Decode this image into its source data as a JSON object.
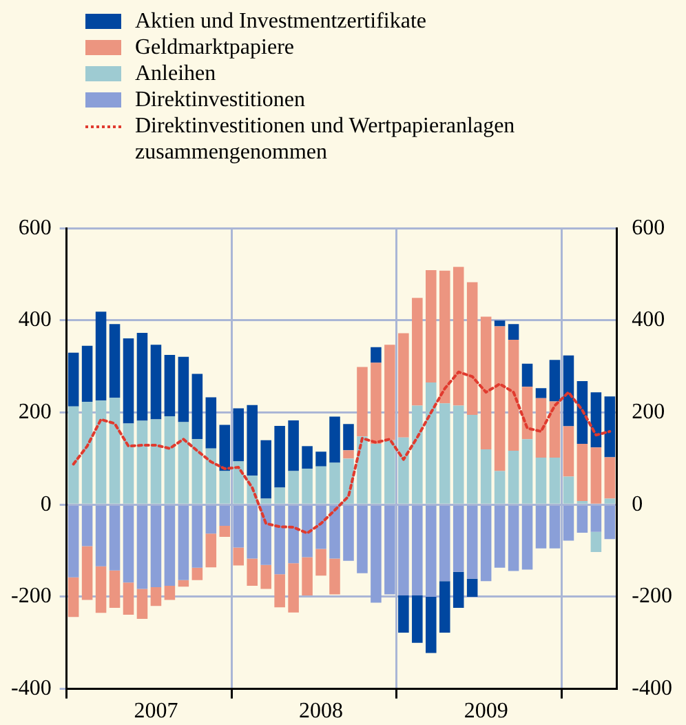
{
  "chart_data": {
    "type": "bar",
    "stacked": true,
    "categories": [
      null,
      null,
      null,
      null,
      null,
      null,
      "2007",
      null,
      null,
      null,
      null,
      null,
      null,
      null,
      null,
      null,
      null,
      null,
      "2008",
      null,
      null,
      null,
      null,
      null,
      null,
      null,
      null,
      null,
      null,
      null,
      "2009",
      null,
      null,
      null,
      null,
      null,
      null,
      null,
      null,
      null
    ],
    "series": [
      {
        "name": "Direktinvestitionen",
        "color": "#8a9fd8",
        "values": [
          -158,
          -90,
          -134,
          -143,
          -169,
          -183,
          -179,
          -176,
          -164,
          -137,
          -63,
          -46,
          -93,
          -117,
          -131,
          -151,
          -127,
          -114,
          -96,
          -117,
          -122,
          -149,
          -213,
          -195,
          -197,
          -197,
          -200,
          -166,
          -146,
          -161,
          -166,
          -137,
          -144,
          -141,
          -95,
          -95,
          -78,
          -61,
          -59,
          -75
        ]
      },
      {
        "name": "Anleihen",
        "color": "#9ecbd2",
        "values": [
          213,
          223,
          226,
          232,
          176,
          182,
          185,
          192,
          179,
          142,
          122,
          73,
          94,
          63,
          13,
          37,
          73,
          78,
          83,
          91,
          100,
          148,
          132,
          140,
          146,
          215,
          265,
          220,
          215,
          195,
          120,
          73,
          117,
          142,
          102,
          102,
          61,
          8,
          -44,
          13
        ]
      },
      {
        "name": "Geldmarktpapiere",
        "color": "#ec9580",
        "values": [
          -86,
          -117,
          -101,
          -81,
          -70,
          -65,
          -41,
          -31,
          -14,
          -27,
          -73,
          -24,
          -39,
          -59,
          -52,
          -72,
          -107,
          -83,
          -58,
          -78,
          18,
          151,
          176,
          207,
          226,
          234,
          244,
          288,
          301,
          288,
          288,
          314,
          241,
          114,
          129,
          122,
          109,
          124,
          124,
          90
        ]
      },
      {
        "name": "Aktien und Investmentzertifikate",
        "color": "#0047a0",
        "values": [
          117,
          122,
          193,
          160,
          185,
          191,
          162,
          133,
          142,
          142,
          111,
          100,
          115,
          153,
          127,
          134,
          110,
          49,
          32,
          100,
          57,
          0,
          34,
          0,
          -81,
          -103,
          -122,
          -112,
          -78,
          -39,
          0,
          13,
          34,
          50,
          22,
          90,
          154,
          136,
          120,
          132
        ]
      },
      {
        "name": "Direktinvestitionen und Wertpapieranlagen zusammengenommen",
        "type": "line",
        "line_style": "dotted",
        "marker": "none",
        "color": "#e03a2e",
        "values": [
          88,
          127,
          185,
          176,
          127,
          129,
          129,
          122,
          142,
          117,
          93,
          78,
          81,
          37,
          -41,
          -48,
          -49,
          -62,
          -41,
          -12,
          18,
          144,
          135,
          142,
          98,
          146,
          200,
          252,
          288,
          278,
          244,
          262,
          244,
          166,
          159,
          215,
          244,
          205,
          151,
          159
        ]
      }
    ],
    "ylim": [
      -400,
      600
    ],
    "yticks": [
      -400,
      -200,
      0,
      200,
      400,
      600
    ],
    "y2lim": [
      -400,
      600
    ],
    "y2ticks": [
      -400,
      -200,
      0,
      200,
      400,
      600
    ],
    "grid": true,
    "legend": "top left"
  }
}
